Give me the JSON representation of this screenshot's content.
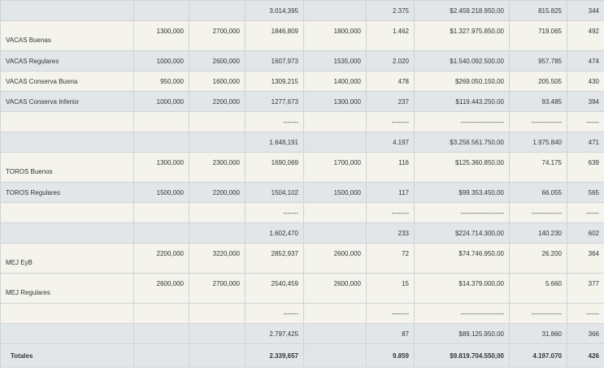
{
  "rows": [
    {
      "label": "",
      "cells": [
        "",
        "",
        "3.014,395",
        "",
        "2.375",
        "$2.459.218.950,00",
        "815.825",
        "344"
      ],
      "bg": "gray",
      "h": 25
    },
    {
      "label": "VACAS Buenas",
      "cells": [
        "1300,000",
        "2700,000",
        "1846,809",
        "1800,000",
        "1.462",
        "$1.327.975.850,00",
        "719.065",
        "492"
      ],
      "bg": "cream",
      "h": 37
    },
    {
      "label": "VACAS Regulares",
      "cells": [
        "1000,000",
        "2600,000",
        "1607,973",
        "1535,000",
        "2.020",
        "$1.540.092.500,00",
        "957.785",
        "474"
      ],
      "bg": "gray",
      "h": 25
    },
    {
      "label": "VACAS Conserva Buena",
      "cells": [
        "950,000",
        "1600,000",
        "1309,215",
        "1400,000",
        "478",
        "$269.050.150,00",
        "205.505",
        "430"
      ],
      "bg": "cream",
      "h": 25
    },
    {
      "label": "VACAS Conserva Inferior",
      "cells": [
        "1000,000",
        "2200,000",
        "1277,673",
        "1300,000",
        "237",
        "$119.443.250,00",
        "93.485",
        "394"
      ],
      "bg": "gray",
      "h": 25
    },
    {
      "label": "",
      "cells": [
        "",
        "",
        "-------",
        "",
        "--------",
        "--------------------",
        "--------------",
        "------"
      ],
      "bg": "cream",
      "h": 25
    },
    {
      "label": "",
      "cells": [
        "",
        "",
        "1.648,191",
        "",
        "4.197",
        "$3.256.561.750,00",
        "1.975.840",
        "471"
      ],
      "bg": "gray",
      "h": 25
    },
    {
      "label": "TOROS Buenos",
      "cells": [
        "1300,000",
        "2300,000",
        "1690,069",
        "1700,000",
        "116",
        "$125.360.850,00",
        "74.175",
        "639"
      ],
      "bg": "cream",
      "h": 37
    },
    {
      "label": "TOROS Regulares",
      "cells": [
        "1500,000",
        "2200,000",
        "1504,102",
        "1500,000",
        "117",
        "$99.353.450,00",
        "66.055",
        "565"
      ],
      "bg": "gray",
      "h": 25
    },
    {
      "label": "",
      "cells": [
        "",
        "",
        "-------",
        "",
        "--------",
        "--------------------",
        "--------------",
        "------"
      ],
      "bg": "cream",
      "h": 25
    },
    {
      "label": "",
      "cells": [
        "",
        "",
        "1.602,470",
        "",
        "233",
        "$224.714.300,00",
        "140.230",
        "602"
      ],
      "bg": "gray",
      "h": 25
    },
    {
      "label": "MEJ EyB",
      "cells": [
        "2200,000",
        "3220,000",
        "2852,937",
        "2600,000",
        "72",
        "$74.746.950,00",
        "26.200",
        "364"
      ],
      "bg": "cream",
      "h": 37
    },
    {
      "label": "MEJ Regulares",
      "cells": [
        "2600,000",
        "2700,000",
        "2540,459",
        "2600,000",
        "15",
        "$14.379.000,00",
        "5.660",
        "377"
      ],
      "bg": "cream",
      "h": 37
    },
    {
      "label": "",
      "cells": [
        "",
        "",
        "-------",
        "",
        "--------",
        "--------------------",
        "--------------",
        "------"
      ],
      "bg": "cream",
      "h": 25
    },
    {
      "label": "",
      "cells": [
        "",
        "",
        "2.797,425",
        "",
        "87",
        "$89.125.950,00",
        "31.860",
        "366"
      ],
      "bg": "gray",
      "h": 25
    }
  ],
  "total": {
    "label": "Totales",
    "cells": [
      "",
      "",
      "2.339,657",
      "",
      "9.859",
      "$9.819.704.550,00",
      "4.197.070",
      "426"
    ]
  }
}
